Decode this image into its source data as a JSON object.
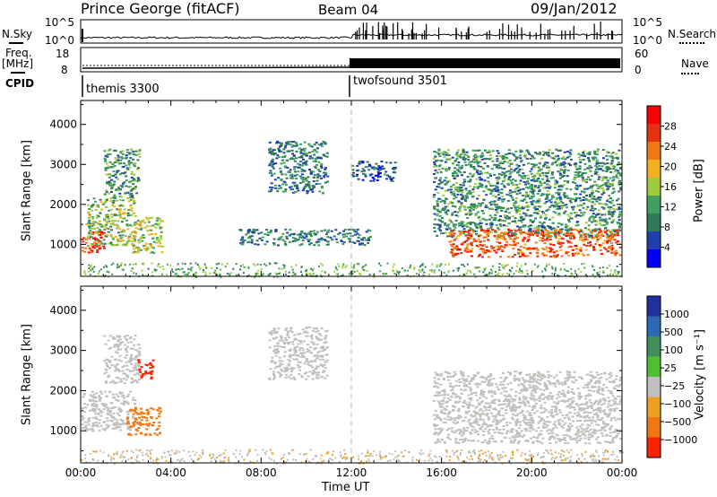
{
  "header": {
    "station": "Prince George (fitACF)",
    "beam": "Beam 04",
    "date": "09/Jan/2012"
  },
  "top_panel": {
    "left_label": "N.Sky",
    "right_label": "N.Search",
    "left_ticks": [
      "10^5",
      "10^0"
    ],
    "right_ticks": [
      "10^5",
      "10^0"
    ]
  },
  "freq_panel": {
    "left_label_1": "Freq.",
    "left_label_2": "[MHz]",
    "right_label": "Nave",
    "left_ticks": [
      "18",
      "8"
    ],
    "right_ticks": [
      "60",
      "0"
    ]
  },
  "cpid": {
    "label": "CPID",
    "modes": [
      {
        "name": "themis 3300",
        "start_hour": 0
      },
      {
        "name": "twofsound 3501",
        "start_hour": 12
      }
    ]
  },
  "power_panel": {
    "ylabel": "Slant Range [km]",
    "yticks": [
      "4000",
      "3000",
      "2000",
      "1000"
    ],
    "colorbar_label": "Power [dB]",
    "colorbar_ticks": [
      "28",
      "24",
      "20",
      "16",
      "12",
      "8",
      "4"
    ]
  },
  "velocity_panel": {
    "ylabel": "Slant Range [km]",
    "yticks": [
      "4000",
      "3000",
      "2000",
      "1000"
    ],
    "colorbar_label": "Velocity [m s⁻¹]",
    "colorbar_ticks": [
      "1000",
      "500",
      "100",
      "25",
      "−25",
      "−100",
      "−500",
      "−1000"
    ]
  },
  "xaxis": {
    "label": "Time UT",
    "ticks": [
      "00:00",
      "04:00",
      "08:00",
      "12:00",
      "16:00",
      "20:00",
      "00:00"
    ]
  },
  "colors": {
    "power_scale": [
      "#0000ff",
      "#1f3fb0",
      "#2f7a5a",
      "#3fa060",
      "#9ecc3c",
      "#f2b01e",
      "#f07a12",
      "#e83010",
      "#ff0000"
    ],
    "velocity_scale": [
      "#2030a0",
      "#2b6ab4",
      "#3f8f5a",
      "#50c030",
      "#c0c0c0",
      "#f0a020",
      "#f07810",
      "#ff2000"
    ],
    "velocity_gray": "#c0c0bc"
  },
  "chart_data": [
    {
      "type": "heatmap",
      "title": "Power",
      "xlabel": "Time UT",
      "ylabel": "Slant Range [km]",
      "xlim": [
        0,
        24
      ],
      "ylim": [
        200,
        4600
      ],
      "zlabel": "Power [dB]",
      "zlim": [
        0,
        32
      ],
      "regions": [
        {
          "t": [
            0.0,
            1.0
          ],
          "range": [
            800,
            1400
          ],
          "power_db": 28
        },
        {
          "t": [
            0.2,
            2.4
          ],
          "range": [
            1000,
            2200
          ],
          "power_db": 14
        },
        {
          "t": [
            1.0,
            2.6
          ],
          "range": [
            2200,
            3400
          ],
          "power_db": 10
        },
        {
          "t": [
            2.2,
            3.6
          ],
          "range": [
            800,
            1700
          ],
          "power_db": 16
        },
        {
          "t": [
            8.3,
            10.9
          ],
          "range": [
            2300,
            3600
          ],
          "power_db": 8
        },
        {
          "t": [
            7.0,
            12.8
          ],
          "range": [
            1000,
            1400
          ],
          "power_db": 8
        },
        {
          "t": [
            12.0,
            13.9
          ],
          "range": [
            2600,
            3100
          ],
          "power_db": 6
        },
        {
          "t": [
            15.6,
            23.9
          ],
          "range": [
            1200,
            3400
          ],
          "power_db": 10
        },
        {
          "t": [
            16.3,
            23.9
          ],
          "range": [
            700,
            1400
          ],
          "power_db": 26
        }
      ]
    },
    {
      "type": "heatmap",
      "title": "Velocity",
      "xlabel": "Time UT",
      "ylabel": "Slant Range [km]",
      "xlim": [
        0,
        24
      ],
      "ylim": [
        200,
        4600
      ],
      "zlabel": "Velocity [m s⁻¹]",
      "zlim": [
        -1000,
        1000
      ],
      "regions": [
        {
          "t": [
            0.0,
            2.4
          ],
          "range": [
            1000,
            2000
          ],
          "velocity": 0
        },
        {
          "t": [
            1.0,
            2.6
          ],
          "range": [
            2200,
            3400
          ],
          "velocity": 0
        },
        {
          "t": [
            2.0,
            3.5
          ],
          "range": [
            900,
            1600
          ],
          "velocity": -300
        },
        {
          "t": [
            8.3,
            10.9
          ],
          "range": [
            2300,
            3600
          ],
          "velocity": 0
        },
        {
          "t": [
            15.6,
            23.9
          ],
          "range": [
            700,
            2500
          ],
          "velocity": 0
        },
        {
          "t": [
            2.5,
            3.2
          ],
          "range": [
            2300,
            2800
          ],
          "velocity": -600
        }
      ]
    }
  ]
}
